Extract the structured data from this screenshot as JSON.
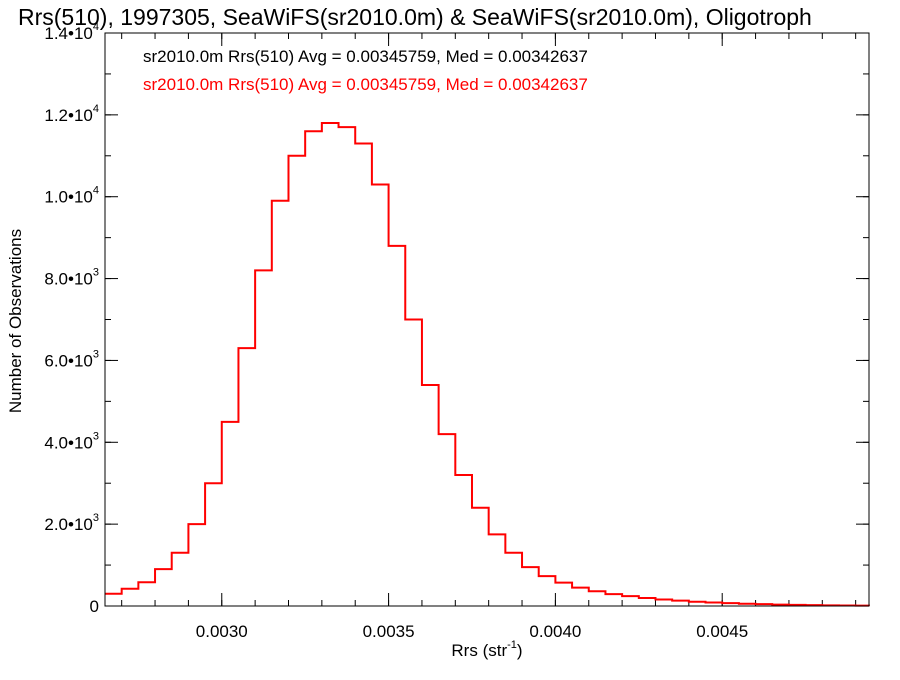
{
  "chart_data": {
    "type": "line",
    "title": "Rrs(510), 1997305, SeaWiFS(sr2010.0m) & SeaWiFS(sr2010.0m), Oligotroph",
    "xlabel_prefix": "Rrs (str",
    "xlabel_sup": "-1",
    "xlabel_suffix": ")",
    "ylabel": "Number of Observations",
    "xlim": [
      0.00265,
      0.00494
    ],
    "ylim": [
      0,
      14000
    ],
    "x_ticks": [
      {
        "value": 0.003,
        "label": "0.0030"
      },
      {
        "value": 0.0035,
        "label": "0.0035"
      },
      {
        "value": 0.004,
        "label": "0.0040"
      },
      {
        "value": 0.0045,
        "label": "0.0045"
      }
    ],
    "y_ticks": [
      {
        "value": 0,
        "label": "0",
        "exp": ""
      },
      {
        "value": 2000,
        "label": "2.0•10",
        "exp": "3"
      },
      {
        "value": 4000,
        "label": "4.0•10",
        "exp": "3"
      },
      {
        "value": 6000,
        "label": "6.0•10",
        "exp": "3"
      },
      {
        "value": 8000,
        "label": "8.0•10",
        "exp": "3"
      },
      {
        "value": 10000,
        "label": "1.0•10",
        "exp": "4"
      },
      {
        "value": 12000,
        "label": "1.2•10",
        "exp": "4"
      },
      {
        "value": 14000,
        "label": "1.4•10",
        "exp": "4"
      }
    ],
    "x_minor_step": 0.0001,
    "y_minor_step": 1000,
    "annotations": [
      {
        "text": "sr2010.0m Rrs(510) Avg = 0.00345759, Med = 0.00342637",
        "color": "#000000"
      },
      {
        "text": "sr2010.0m Rrs(510) Avg = 0.00345759, Med = 0.00342637",
        "color": "#ff0000"
      }
    ],
    "series": [
      {
        "color": "#ff0000",
        "step": true,
        "x": [
          0.00265,
          0.0027,
          0.00275,
          0.0028,
          0.00285,
          0.0029,
          0.00295,
          0.003,
          0.00305,
          0.0031,
          0.00315,
          0.0032,
          0.00325,
          0.0033,
          0.00335,
          0.0034,
          0.00345,
          0.0035,
          0.00355,
          0.0036,
          0.00365,
          0.0037,
          0.00375,
          0.0038,
          0.00385,
          0.0039,
          0.00395,
          0.004,
          0.00405,
          0.0041,
          0.00415,
          0.0042,
          0.00425,
          0.0043,
          0.00435,
          0.0044,
          0.00445,
          0.0045,
          0.00455,
          0.0046,
          0.00465,
          0.0047,
          0.00475,
          0.0048,
          0.00485,
          0.0049,
          0.00494
        ],
        "y": [
          300,
          420,
          580,
          900,
          1300,
          2000,
          3000,
          4500,
          6300,
          8200,
          9900,
          11000,
          11600,
          11800,
          11700,
          11300,
          10300,
          8800,
          7000,
          5400,
          4200,
          3200,
          2400,
          1750,
          1300,
          950,
          730,
          570,
          450,
          360,
          290,
          240,
          195,
          160,
          130,
          105,
          85,
          70,
          55,
          45,
          35,
          28,
          22,
          16,
          12,
          8,
          5
        ]
      }
    ]
  }
}
